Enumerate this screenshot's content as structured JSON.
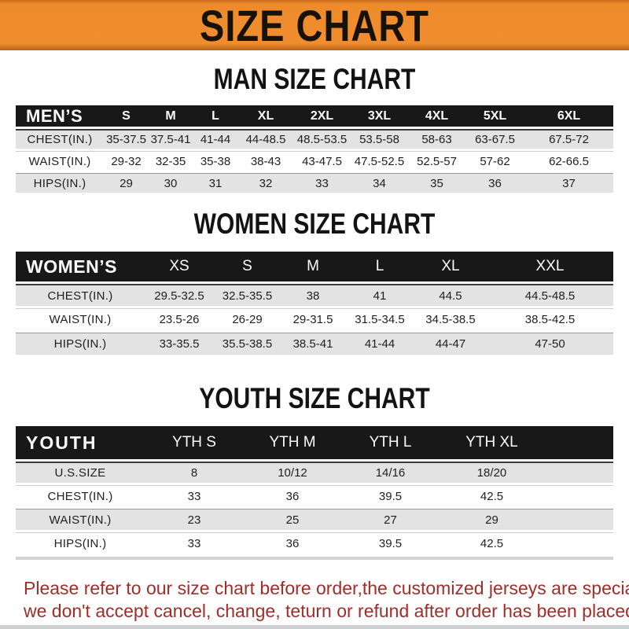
{
  "banner": {
    "title": "SIZE CHART"
  },
  "sections": [
    {
      "heading": "MAN SIZE CHART",
      "header_label": "MEN’S",
      "columns": [
        "S",
        "M",
        "L",
        "XL",
        "2XL",
        "3XL",
        "4XL",
        "5XL",
        "6XL"
      ],
      "rows": [
        {
          "label": "CHEST(IN.)",
          "values": [
            "35-37.5",
            "37.5-41",
            "41-44",
            "44-48.5",
            "48.5-53.5",
            "53.5-58",
            "58-63",
            "63-67.5",
            "67.5-72"
          ]
        },
        {
          "label": "WAIST(IN.)",
          "values": [
            "29-32",
            "32-35",
            "35-38",
            "38-43",
            "43-47.5",
            "47.5-52.5",
            "52.5-57",
            "57-62",
            "62-66.5"
          ]
        },
        {
          "label": "HIPS(IN.)",
          "values": [
            "29",
            "30",
            "31",
            "32",
            "33",
            "34",
            "35",
            "36",
            "37"
          ]
        }
      ]
    },
    {
      "heading": "WOMEN SIZE CHART",
      "header_label": "WOMEN’S",
      "columns": [
        "XS",
        "S",
        "M",
        "L",
        "XL",
        "XXL"
      ],
      "rows": [
        {
          "label": "CHEST(IN.)",
          "values": [
            "29.5-32.5",
            "32.5-35.5",
            "38",
            "41",
            "44.5",
            "44.5-48.5"
          ]
        },
        {
          "label": "WAIST(IN.)",
          "values": [
            "23.5-26",
            "26-29",
            "29-31.5",
            "31.5-34.5",
            "34.5-38.5",
            "38.5-42.5"
          ]
        },
        {
          "label": "HIPS(IN.)",
          "values": [
            "33-35.5",
            "35.5-38.5",
            "38.5-41",
            "41-44",
            "44-47",
            "47-50"
          ]
        }
      ]
    },
    {
      "heading": "YOUTH SIZE CHART",
      "header_label": "YOUTH",
      "columns": [
        "YTH S",
        "YTH M",
        "YTH L",
        "YTH XL"
      ],
      "rows": [
        {
          "label": "U.S.SIZE",
          "values": [
            "8",
            "10/12",
            "14/16",
            "18/20"
          ]
        },
        {
          "label": "CHEST(IN.)",
          "values": [
            "33",
            "36",
            "39.5",
            "42.5"
          ]
        },
        {
          "label": "WAIST(IN.)",
          "values": [
            "23",
            "25",
            "27",
            "29"
          ]
        },
        {
          "label": "HIPS(IN.)",
          "values": [
            "33",
            "36",
            "39.5",
            "42.5"
          ]
        }
      ]
    }
  ],
  "footer": {
    "line1": "Please refer to our size chart before order,the customized jerseys are special products,",
    "line2": "we don't accept cancel, change, teturn or refund after order has been placed!"
  },
  "appearance": {
    "banner_bg": "#EF8C2D",
    "banner_text": "#171207",
    "header_bar_bg": "#181818",
    "header_bar_text": "#FBFBFB",
    "shaded_row_bg": "#E3E3E3",
    "notice_text_color": "#9F2D28"
  }
}
